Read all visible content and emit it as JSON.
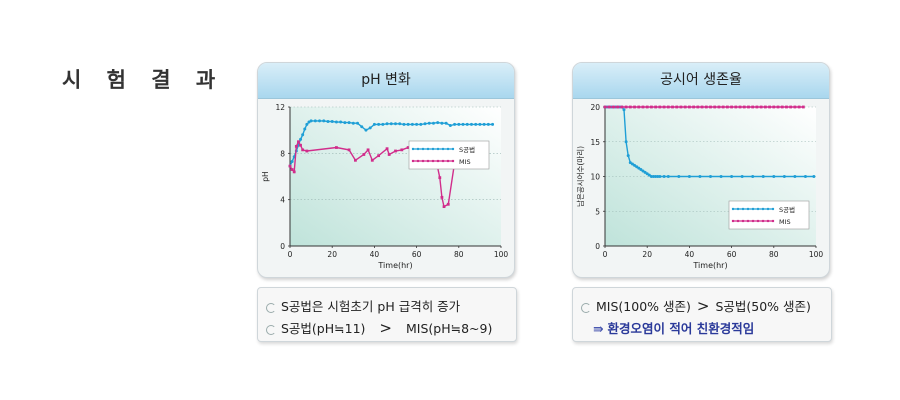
{
  "page": {
    "title": "시 험 결 과"
  },
  "colors": {
    "series_blue": "#1f9fd6",
    "series_magenta": "#d12d8b"
  },
  "chart_data": [
    {
      "type": "line",
      "title": "pH 변화",
      "xlabel": "Time(hr)",
      "ylabel": "pH",
      "xlim": [
        0,
        100
      ],
      "ylim": [
        0,
        12
      ],
      "xticks": [
        "0",
        "20",
        "40",
        "60",
        "80",
        "100"
      ],
      "yticks": [
        "0",
        "4",
        "8",
        "12"
      ],
      "grid": true,
      "legend_position": "right",
      "series": [
        {
          "name": "S공법",
          "color": "#1f9fd6",
          "x": [
            0,
            1,
            2,
            3,
            4,
            5,
            6,
            7,
            8,
            9,
            10,
            12,
            14,
            16,
            18,
            20,
            22,
            24,
            26,
            28,
            30,
            32,
            34,
            36,
            38,
            40,
            42,
            44,
            46,
            48,
            50,
            52,
            54,
            56,
            58,
            60,
            62,
            64,
            66,
            68,
            70,
            72,
            74,
            76,
            78,
            80,
            82,
            84,
            86,
            88,
            90,
            92,
            94,
            96
          ],
          "y": [
            6.9,
            7.3,
            7.7,
            8.2,
            8.7,
            9.2,
            9.6,
            10.1,
            10.5,
            10.7,
            10.8,
            10.8,
            10.8,
            10.8,
            10.75,
            10.75,
            10.7,
            10.7,
            10.65,
            10.65,
            10.6,
            10.6,
            10.3,
            10.0,
            10.2,
            10.5,
            10.5,
            10.5,
            10.55,
            10.55,
            10.55,
            10.55,
            10.5,
            10.5,
            10.5,
            10.5,
            10.5,
            10.55,
            10.6,
            10.6,
            10.65,
            10.6,
            10.6,
            10.4,
            10.5,
            10.5,
            10.5,
            10.5,
            10.5,
            10.5,
            10.5,
            10.5,
            10.5,
            10.5
          ]
        },
        {
          "name": "MIS",
          "color": "#d12d8b",
          "x": [
            0,
            1,
            2,
            3,
            4,
            5,
            6,
            8,
            22,
            28,
            31,
            35,
            37,
            39,
            42,
            46,
            47,
            50,
            53,
            56,
            60,
            64,
            69,
            71,
            72,
            73,
            75,
            78,
            85
          ],
          "y": [
            6.9,
            6.6,
            6.4,
            8.6,
            9.0,
            8.7,
            8.3,
            8.2,
            8.5,
            8.3,
            7.4,
            7.9,
            8.3,
            7.4,
            7.8,
            8.4,
            7.9,
            8.2,
            8.3,
            8.5,
            8.4,
            8.1,
            7.6,
            5.9,
            4.2,
            3.4,
            3.6,
            7.2,
            8.9
          ]
        }
      ]
    },
    {
      "type": "line",
      "title": "공시어 생존율",
      "xlabel": "Time(hr)",
      "ylabel": "남은공시어수(마리)",
      "xlim": [
        0,
        100
      ],
      "ylim": [
        0,
        20
      ],
      "xticks": [
        "0",
        "20",
        "40",
        "60",
        "80",
        "100"
      ],
      "yticks": [
        "0",
        "5",
        "10",
        "15",
        "20"
      ],
      "grid": true,
      "legend_position": "bottom-right",
      "series": [
        {
          "name": "S공법",
          "color": "#1f9fd6",
          "x": [
            0,
            1,
            2,
            3,
            4,
            5,
            6,
            7,
            8,
            9,
            10,
            11,
            12,
            13,
            14,
            15,
            16,
            17,
            18,
            19,
            20,
            21,
            22,
            23,
            24,
            25,
            26,
            28,
            30,
            35,
            40,
            45,
            50,
            55,
            60,
            65,
            70,
            75,
            80,
            85,
            90,
            95,
            99
          ],
          "y": [
            20,
            20,
            20,
            20,
            20,
            20,
            20,
            20,
            20,
            19.6,
            15,
            13,
            12,
            11.8,
            11.6,
            11.4,
            11.2,
            11.0,
            10.8,
            10.6,
            10.4,
            10.2,
            10.0,
            10,
            10,
            10,
            10,
            10,
            10,
            10,
            10,
            10,
            10,
            10,
            10,
            10,
            10,
            10,
            10,
            10,
            10,
            10,
            10
          ]
        },
        {
          "name": "MIS",
          "color": "#d12d8b",
          "x": [
            0,
            2,
            4,
            6,
            8,
            10,
            12,
            14,
            16,
            18,
            20,
            22,
            24,
            26,
            28,
            30,
            32,
            34,
            36,
            38,
            40,
            42,
            44,
            46,
            48,
            50,
            52,
            54,
            56,
            58,
            60,
            62,
            64,
            66,
            68,
            70,
            72,
            74,
            76,
            78,
            80,
            82,
            84,
            86,
            88,
            90,
            92,
            94
          ],
          "y": [
            20,
            20,
            20,
            20,
            20,
            20,
            20,
            20,
            20,
            20,
            20,
            20,
            20,
            20,
            20,
            20,
            20,
            20,
            20,
            20,
            20,
            20,
            20,
            20,
            20,
            20,
            20,
            20,
            20,
            20,
            20,
            20,
            20,
            20,
            20,
            20,
            20,
            20,
            20,
            20,
            20,
            20,
            20,
            20,
            20,
            20,
            20,
            20
          ]
        }
      ]
    }
  ],
  "notes_left": {
    "line1": "S공법은 시험초기 pH 급격히 증가",
    "line2_left": "S공법(pH≒11)",
    "line2_gt": ">",
    "line2_right": "MIS(pH≒8~9)"
  },
  "notes_right": {
    "line1_left": "MIS(100% 생존)",
    "line1_gt": ">",
    "line1_right": "S공법(50% 생존)",
    "line2_arrow": "⇛",
    "line2": "환경오염이 적어 친환경적임"
  }
}
